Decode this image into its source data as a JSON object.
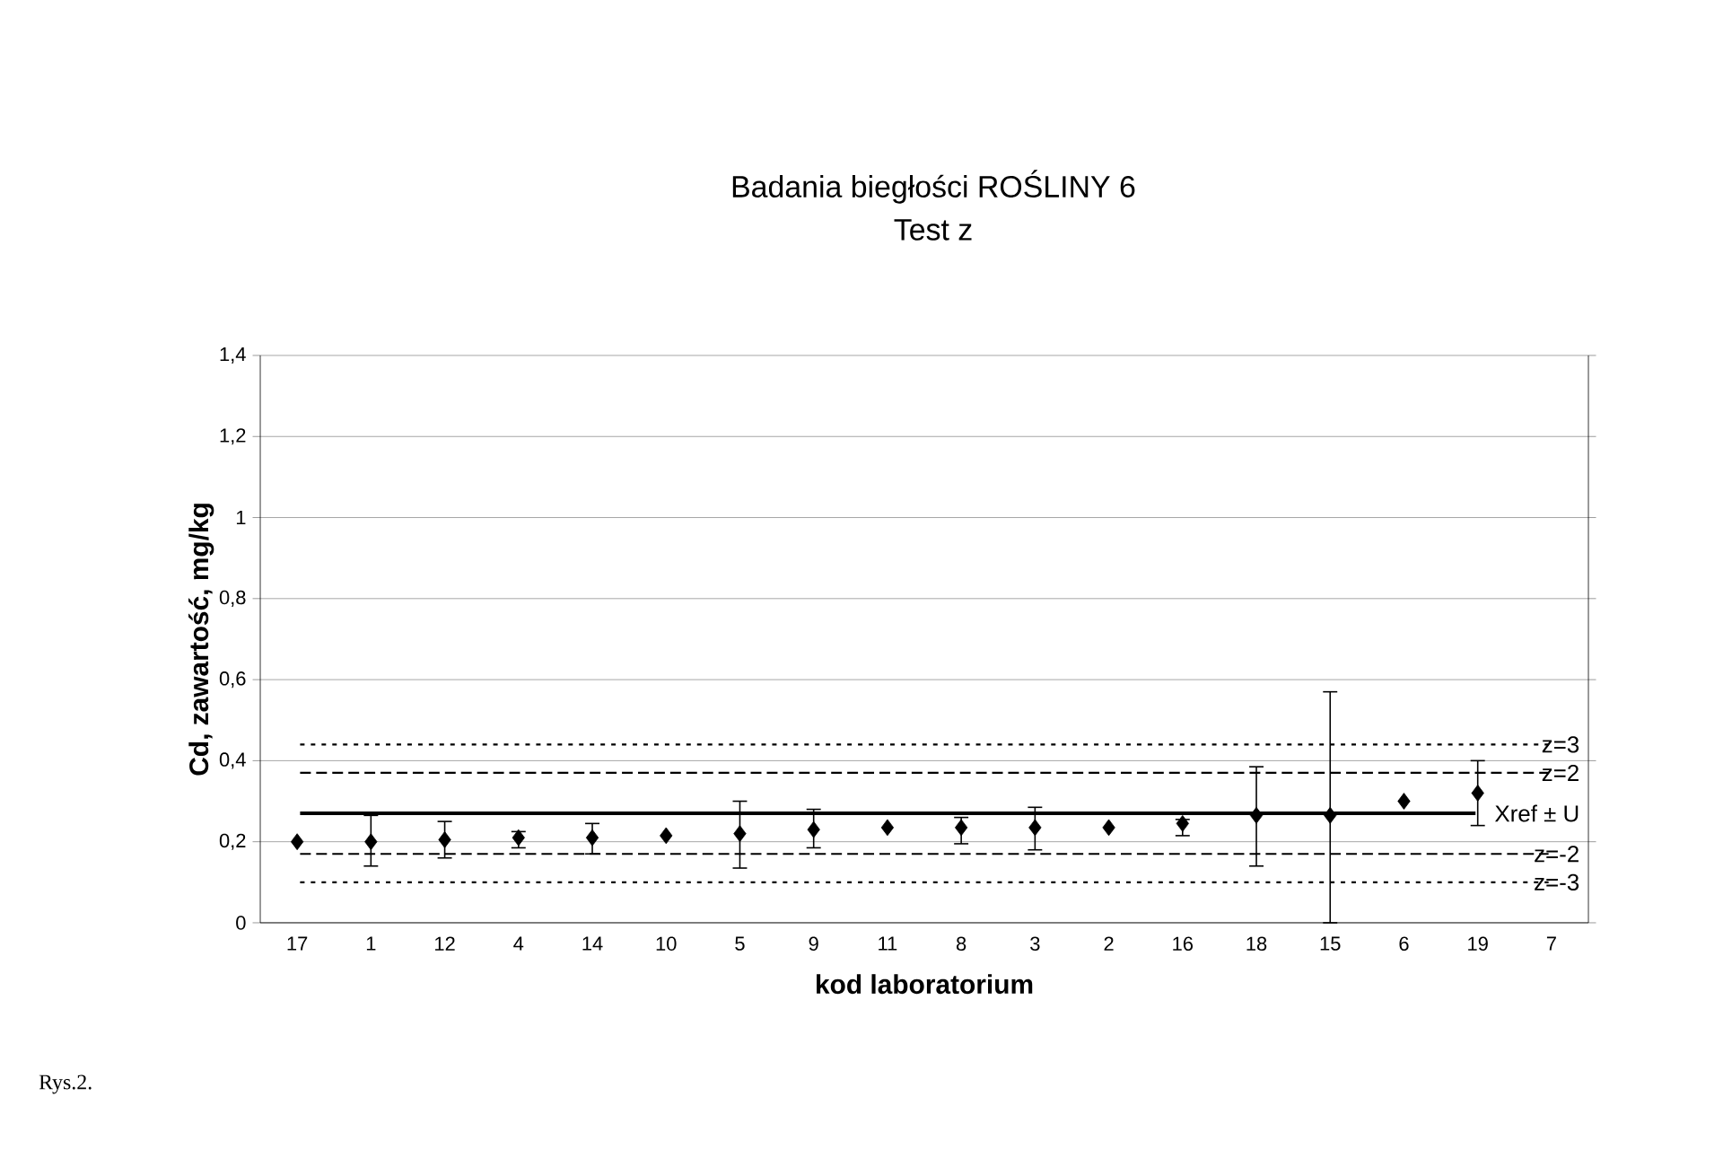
{
  "chart_data": {
    "type": "scatter",
    "title": "Badania biegłości ROŚLINY 6",
    "subtitle": "Test z",
    "xlabel": "kod laboratorium",
    "ylabel": "Cd, zawartość, mg/kg",
    "categories": [
      "17",
      "1",
      "12",
      "4",
      "14",
      "10",
      "5",
      "9",
      "11",
      "8",
      "3",
      "2",
      "16",
      "18",
      "15",
      "6",
      "19",
      "7"
    ],
    "series": [
      {
        "color": "#000000",
        "values": [
          0.2,
          0.2,
          0.205,
          0.21,
          0.21,
          0.215,
          0.22,
          0.23,
          0.235,
          0.235,
          0.235,
          0.235,
          0.245,
          0.265,
          0.265,
          0.3,
          0.32,
          null
        ],
        "errors": [
          null,
          [
            0.14,
            0.265
          ],
          [
            0.16,
            0.25
          ],
          [
            0.185,
            0.225
          ],
          [
            0.17,
            0.245
          ],
          null,
          [
            0.135,
            0.3
          ],
          [
            0.185,
            0.28
          ],
          null,
          [
            0.195,
            0.26
          ],
          [
            0.18,
            0.285
          ],
          null,
          [
            0.215,
            0.255
          ],
          [
            0.14,
            0.385
          ],
          [
            0,
            0.57
          ],
          null,
          [
            0.24,
            0.4
          ],
          null
        ]
      }
    ],
    "ylim": [
      0,
      1.4
    ],
    "yticks": [
      0,
      {
        "value": 0.2,
        "label": "0,2"
      },
      {
        "value": 0.4,
        "label": "0,4"
      },
      {
        "value": 0.6,
        "label": "0,6"
      },
      {
        "value": 0.8,
        "label": "0,8"
      },
      1,
      {
        "value": 1.2,
        "label": "1,2"
      },
      {
        "value": 1.4,
        "label": "1,4"
      }
    ],
    "grid": "y",
    "marker": "diamond",
    "ref_lines": [
      {
        "axis": "y",
        "value": 0.44,
        "line_style": "dotted",
        "color": "#000000"
      },
      {
        "axis": "y",
        "value": 0.37,
        "line_style": "dashed",
        "color": "#000000"
      },
      {
        "axis": "y",
        "value": 0.27,
        "line_style": "solid",
        "color": "#000000"
      },
      {
        "axis": "y",
        "value": 0.17,
        "line_style": "dashed",
        "color": "#000000"
      },
      {
        "axis": "y",
        "value": 0.1,
        "line_style": "dotted",
        "color": "#000000"
      }
    ],
    "annotations": [
      "Rys.2.",
      "z=3",
      "z=2",
      "Xref ± U",
      "z=-2",
      "z=-3"
    ]
  }
}
